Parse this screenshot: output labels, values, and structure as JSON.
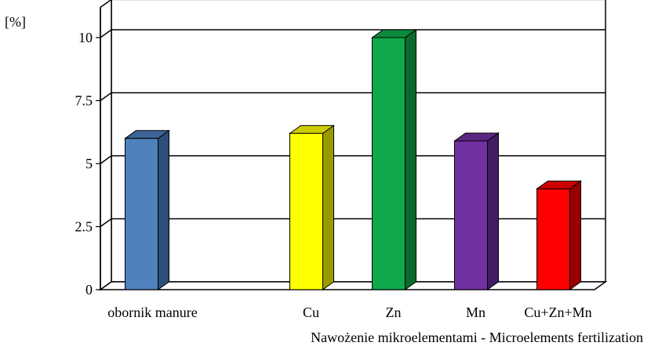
{
  "chart_data": {
    "type": "bar",
    "ylabel": "[%]",
    "xlabel": "Nawożenie mikroelementami - Microelements fertilization",
    "ylim": [
      0,
      11.2
    ],
    "yticks": [
      "0",
      "2.5",
      "5",
      "7.5",
      "10"
    ],
    "ytick_values": [
      0,
      2.5,
      5,
      7.5,
      10
    ],
    "grid": true,
    "categories": [
      "obornik manure",
      "",
      "Cu",
      "Zn",
      "Mn",
      "Cu+Zn+Mn"
    ],
    "values": [
      6.0,
      null,
      6.2,
      10.0,
      5.9,
      4.0
    ],
    "bar_colors": [
      {
        "front": "#4f81bd",
        "side": "#2e4f78",
        "top": "#3c6496"
      },
      null,
      {
        "front": "#ffff00",
        "side": "#9a9a00",
        "top": "#cccc00"
      },
      {
        "front": "#0fa84a",
        "side": "#0a6a2e",
        "top": "#0c8a3c"
      },
      {
        "front": "#7030a0",
        "side": "#441c63",
        "top": "#5a2782"
      },
      {
        "front": "#ff0000",
        "side": "#990000",
        "top": "#cc0000"
      }
    ]
  }
}
